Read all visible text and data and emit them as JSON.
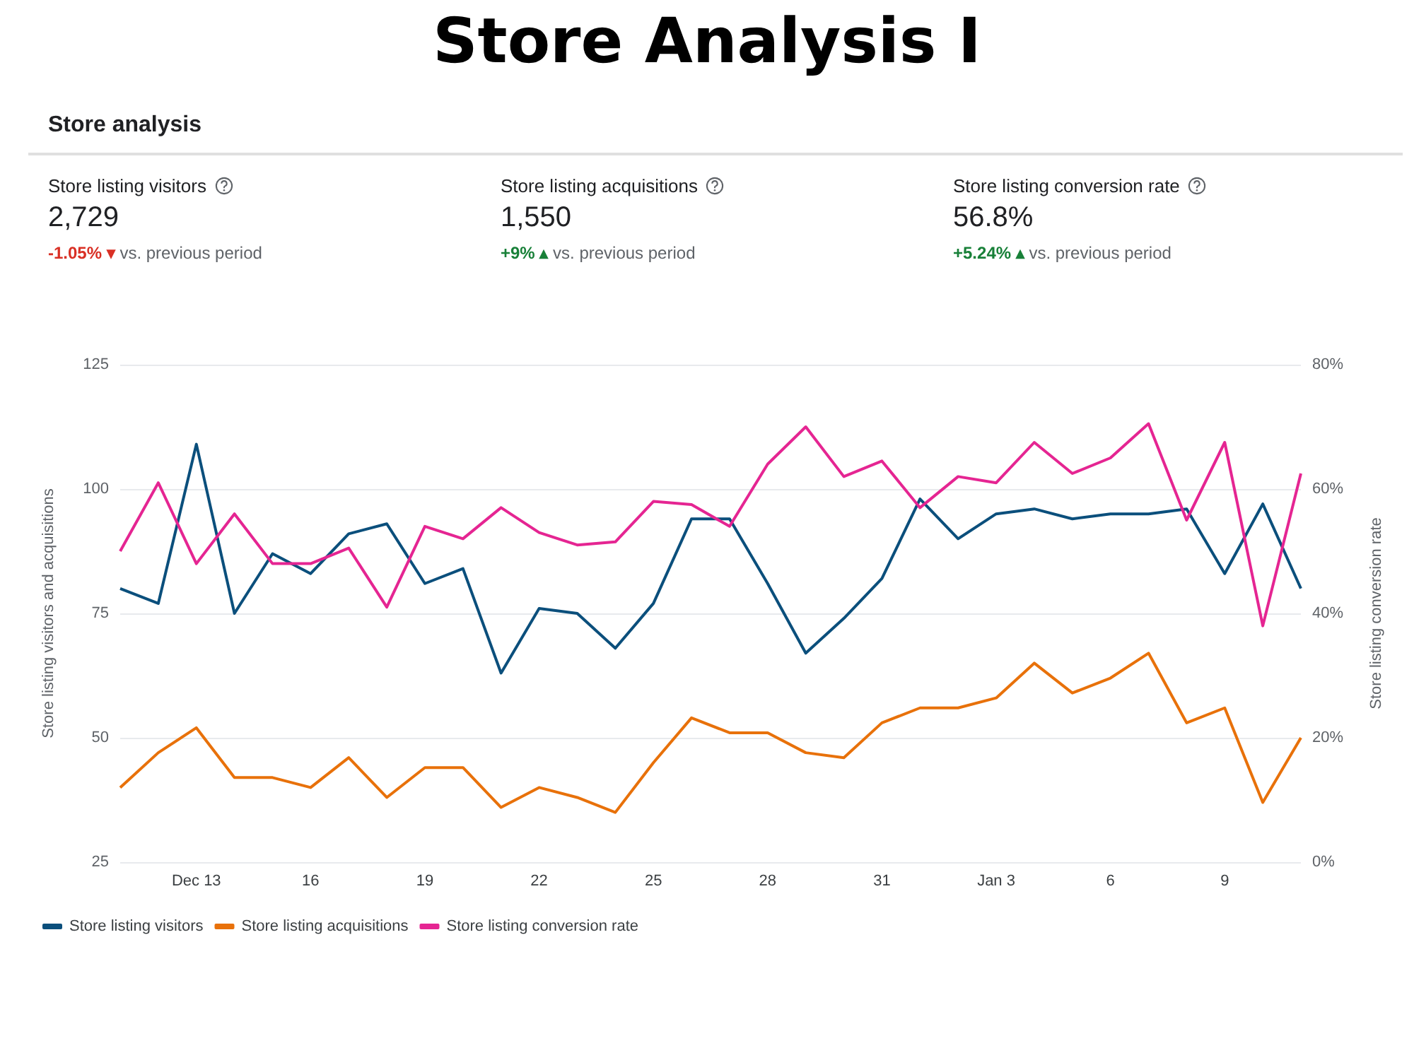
{
  "chart_data": [
    {
      "type": "other",
      "title": "Store Analysis I",
      "subtitle": "Store analysis",
      "annotations": [
        "Store listing visitors",
        "2,729",
        "-1.05% ▾",
        "vs. previous period",
        "Store listing acquisitions",
        "1,550",
        "+9% ▴",
        "vs. previous period",
        "Store listing conversion rate",
        "56.8%",
        "+5.24% ▴",
        "vs. previous period"
      ],
      "colors": [
        "#d93025",
        "#188038",
        "#188038"
      ]
    },
    {
      "type": "line",
      "categories": [
        null,
        null,
        "Dec 13",
        null,
        null,
        "16",
        null,
        null,
        "19",
        null,
        null,
        "22",
        null,
        null,
        "25",
        null,
        null,
        "28",
        null,
        null,
        "31",
        null,
        null,
        "Jan 3",
        null,
        null,
        "6",
        null,
        null,
        "9",
        null,
        null
      ],
      "ylabel": "Store listing visitors and acquisitions",
      "y2label": "Store listing conversion rate",
      "ylim": [
        25,
        125
      ],
      "yticks": [
        25,
        50,
        75,
        100,
        125
      ],
      "y2lim": [
        0,
        80
      ],
      "y2ticks": [
        {
          "value": 0,
          "label": "0%"
        },
        {
          "value": 20,
          "label": "20%"
        },
        {
          "value": 40,
          "label": "40%"
        },
        {
          "value": 60,
          "label": "60%"
        },
        {
          "value": 80,
          "label": "80%"
        }
      ],
      "grid": "y",
      "legend": "bottom left",
      "marker": "none",
      "line_style": "solid",
      "series": [
        {
          "name": "Store listing visitors",
          "color": "#0b4f7c",
          "values": [
            80,
            77,
            109,
            75,
            87,
            83,
            91,
            93,
            81,
            84,
            63,
            76,
            75,
            68,
            77,
            94,
            94,
            81,
            67,
            74,
            82,
            98,
            90,
            95,
            96,
            94,
            95,
            95,
            96,
            83,
            97,
            80
          ]
        },
        {
          "name": "Store listing acquisitions",
          "color": "#e8710a",
          "values": [
            40,
            47,
            52,
            42,
            42,
            40,
            46,
            38,
            44,
            44,
            36,
            40,
            38,
            35,
            45,
            54,
            51,
            51,
            47,
            46,
            53,
            56,
            56,
            58,
            65,
            59,
            62,
            67,
            53,
            56,
            37,
            50
          ]
        },
        {
          "name": "Store listing conversion rate",
          "color": "#e52592",
          "axis": "y2",
          "values": [
            50,
            61,
            48,
            56,
            48,
            48,
            50.5,
            41,
            54,
            52,
            57,
            53,
            51,
            51.5,
            58,
            57.5,
            54,
            64,
            70,
            62,
            64.5,
            57,
            62,
            61,
            67.5,
            62.5,
            65,
            70.5,
            55,
            67.5,
            38,
            62.5
          ]
        }
      ]
    }
  ]
}
